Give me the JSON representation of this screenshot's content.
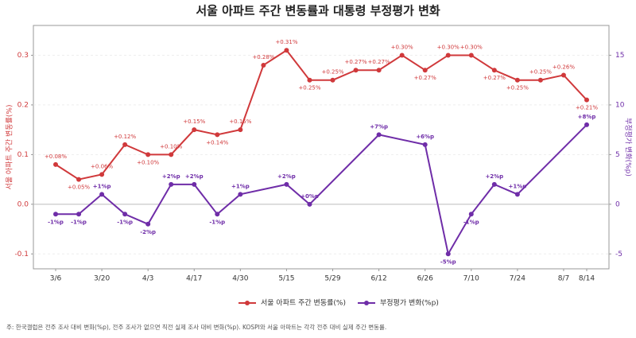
{
  "chart_data": {
    "type": "line",
    "title": "서울 아파트 주간 변동률과 대통령 부정평가 변화",
    "y_label": "서울 아파트 주간 변동률(%)",
    "y2_label": "부정평가 변화(%p)",
    "note": "주: 한국갤럽은 전주 조사 대비 변화(%p), 전주 조사가 없으면 직전 실제 조사 대비 변화(%p). KOSPI와 서울 아파트는 각각 전주 대비 실제 주간 변동률.",
    "categories": [
      "3/6",
      null,
      "3/20",
      null,
      "4/3",
      null,
      "4/17",
      null,
      "4/30",
      null,
      "5/15",
      null,
      "5/29",
      null,
      "6/12",
      null,
      "6/26",
      null,
      "7/10",
      null,
      "7/24",
      null,
      "8/7",
      "8/14"
    ],
    "ylim": [
      -0.13,
      0.36
    ],
    "yticks": [
      -0.1,
      {
        "value": 0,
        "label": "0.0"
      },
      0.1,
      0.2,
      0.3
    ],
    "y2lim": [
      -6.5,
      18
    ],
    "y2ticks": [
      -5,
      0,
      5,
      10,
      15
    ],
    "grid": true,
    "connect_gaps": true,
    "legend": "bottom",
    "series": [
      {
        "name": "서울 아파트 주간 변동률(%)",
        "color": "#d0393b",
        "values": [
          0.08,
          0.05,
          0.06,
          0.12,
          0.1,
          0.1,
          0.15,
          0.14,
          0.15,
          0.28,
          0.31,
          0.25,
          0.25,
          0.27,
          0.27,
          0.3,
          0.27,
          0.3,
          0.3,
          0.27,
          0.25,
          0.25,
          0.26,
          0.21
        ],
        "value_labels": [
          "+0.08%",
          "+0.05%",
          "+0.06%",
          "+0.12%",
          "+0.10%",
          "+0.10%",
          "+0.15%",
          "+0.14%",
          "+0.15%",
          "+0.28%",
          "+0.31%",
          "+0.25%",
          "+0.25%",
          "+0.27%",
          "+0.27%",
          "+0.30%",
          "+0.27%",
          "+0.30%",
          "+0.30%",
          "+0.27%",
          "+0.25%",
          "+0.25%",
          "+0.26%",
          "+0.21%"
        ]
      },
      {
        "name": "부정평가 변화(%p)",
        "color": "#6f2da8",
        "axis": "y2",
        "values": [
          -1,
          -1,
          1,
          -1,
          -2,
          2,
          2,
          -1,
          1,
          null,
          2,
          0,
          null,
          null,
          7,
          null,
          6,
          -5,
          -1,
          2,
          1,
          null,
          null,
          8
        ],
        "value_labels": [
          "-1%p",
          "-1%p",
          "+1%p",
          "-1%p",
          "-2%p",
          "+2%p",
          "+2%p",
          "-1%p",
          "+1%p",
          null,
          "+2%p",
          "+0%p",
          null,
          null,
          "+7%p",
          null,
          "+6%p",
          "-5%p",
          "-1%p",
          "+2%p",
          "+1%p",
          null,
          null,
          "+8%p"
        ]
      }
    ]
  }
}
